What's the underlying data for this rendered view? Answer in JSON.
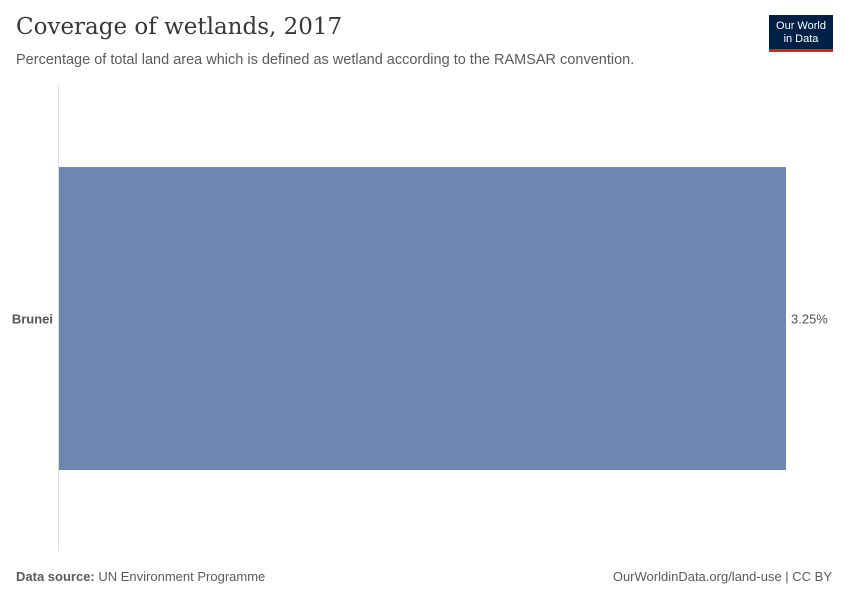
{
  "title": "Coverage of wetlands, 2017",
  "subtitle": "Percentage of total land area which is defined as wetland according to the RAMSAR convention.",
  "logo": {
    "line1": "Our World",
    "line2": "in Data"
  },
  "footer": {
    "source_label": "Data source:",
    "source": "UN Environment Programme",
    "right": "OurWorldinData.org/land-use | CC BY"
  },
  "chart_data": {
    "type": "bar",
    "orientation": "horizontal",
    "categories": [
      "Brunei"
    ],
    "values": [
      3.25
    ],
    "value_labels": [
      "3.25%"
    ],
    "color": "#6f87b0",
    "xlim": [
      0,
      3.25
    ]
  }
}
